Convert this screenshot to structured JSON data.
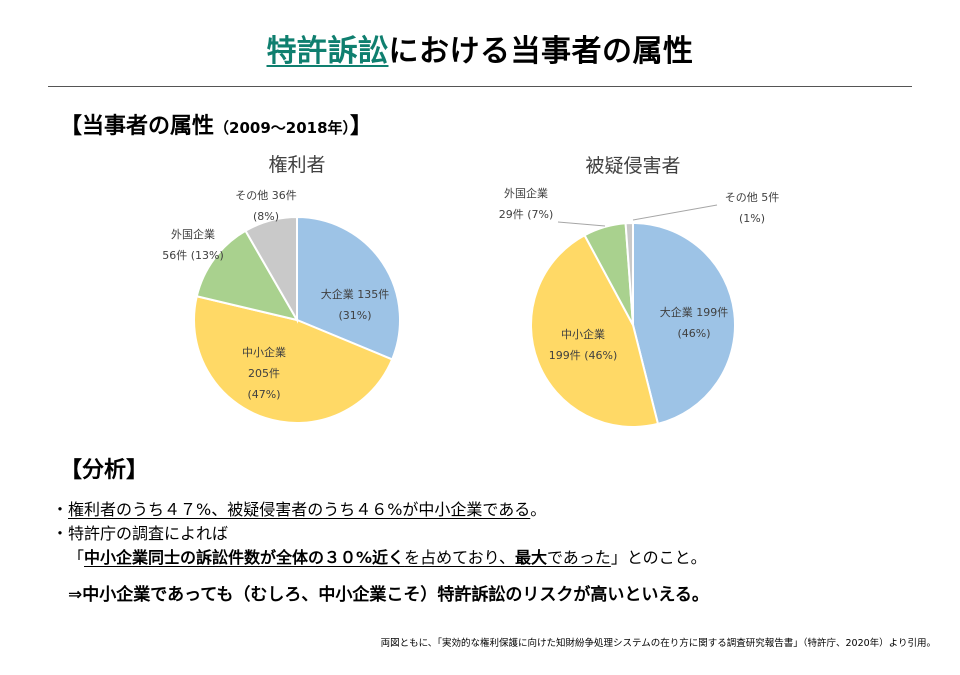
{
  "title": {
    "highlight": "特許訴訟",
    "rest": "における当事者の属性"
  },
  "section1": {
    "label": "【当事者の属性",
    "period": "（2009～2018年）",
    "close": "】"
  },
  "section2": {
    "label": "【分析】"
  },
  "colors": {
    "large": "#9dc3e6",
    "sme": "#ffd966",
    "foreign": "#a9d18e",
    "other": "#c9c9c9",
    "accent": "#0f7f6f"
  },
  "chart_data": [
    {
      "type": "pie",
      "title": "権利者",
      "slices": [
        {
          "category": "大企業",
          "count": "135件",
          "value": 135,
          "percent": 31,
          "percent_label": "(31%)",
          "color": "#9dc3e6"
        },
        {
          "category": "中小企業",
          "count": "205件",
          "value": 205,
          "percent": 47,
          "percent_label": "(47%)",
          "color": "#ffd966"
        },
        {
          "category": "外国企業",
          "count": "56件",
          "value": 56,
          "percent": 13,
          "percent_label": "(13%)",
          "color": "#a9d18e"
        },
        {
          "category": "その他",
          "count": "36件",
          "value": 36,
          "percent": 8,
          "percent_label": "(8%)",
          "color": "#c9c9c9"
        }
      ]
    },
    {
      "type": "pie",
      "title": "被疑侵害者",
      "slices": [
        {
          "category": "大企業",
          "count": "199件",
          "value": 199,
          "percent": 46,
          "percent_label": "(46%)",
          "color": "#9dc3e6"
        },
        {
          "category": "中小企業",
          "count": "199件",
          "value": 199,
          "percent": 46,
          "percent_label": "(46%)",
          "color": "#ffd966"
        },
        {
          "category": "外国企業",
          "count": "29件",
          "value": 29,
          "percent": 7,
          "percent_label": "(7%)",
          "color": "#a9d18e"
        },
        {
          "category": "その他",
          "count": "5件",
          "value": 5,
          "percent": 1,
          "percent_label": "(1%)",
          "color": "#c9c9c9"
        }
      ]
    }
  ],
  "analysis": {
    "b1_dot": "・",
    "b1_under": "権利者のうち４７%、被疑侵害者のうち４６%が中小企業である",
    "b1_end": "。",
    "b2_dot": "・",
    "b2_text": "特許庁の調査によれば",
    "q_open": "「",
    "q_bold1": "中小企業同士の訴訟件数が全体の３０%近く",
    "q_mid1": "を占めており、",
    "q_bold2": "最大",
    "q_mid2": "であった",
    "q_close": "」とのこと。",
    "conclusion": "⇒中小企業であっても（むしろ、中小企業こそ）特許訴訟のリスクが高いといえる。"
  },
  "source": "両図ともに、「実効的な権利保護に向けた知財紛争処理システムの在り方に関する調査研究報告書」（特許庁、2020年）より引用。"
}
